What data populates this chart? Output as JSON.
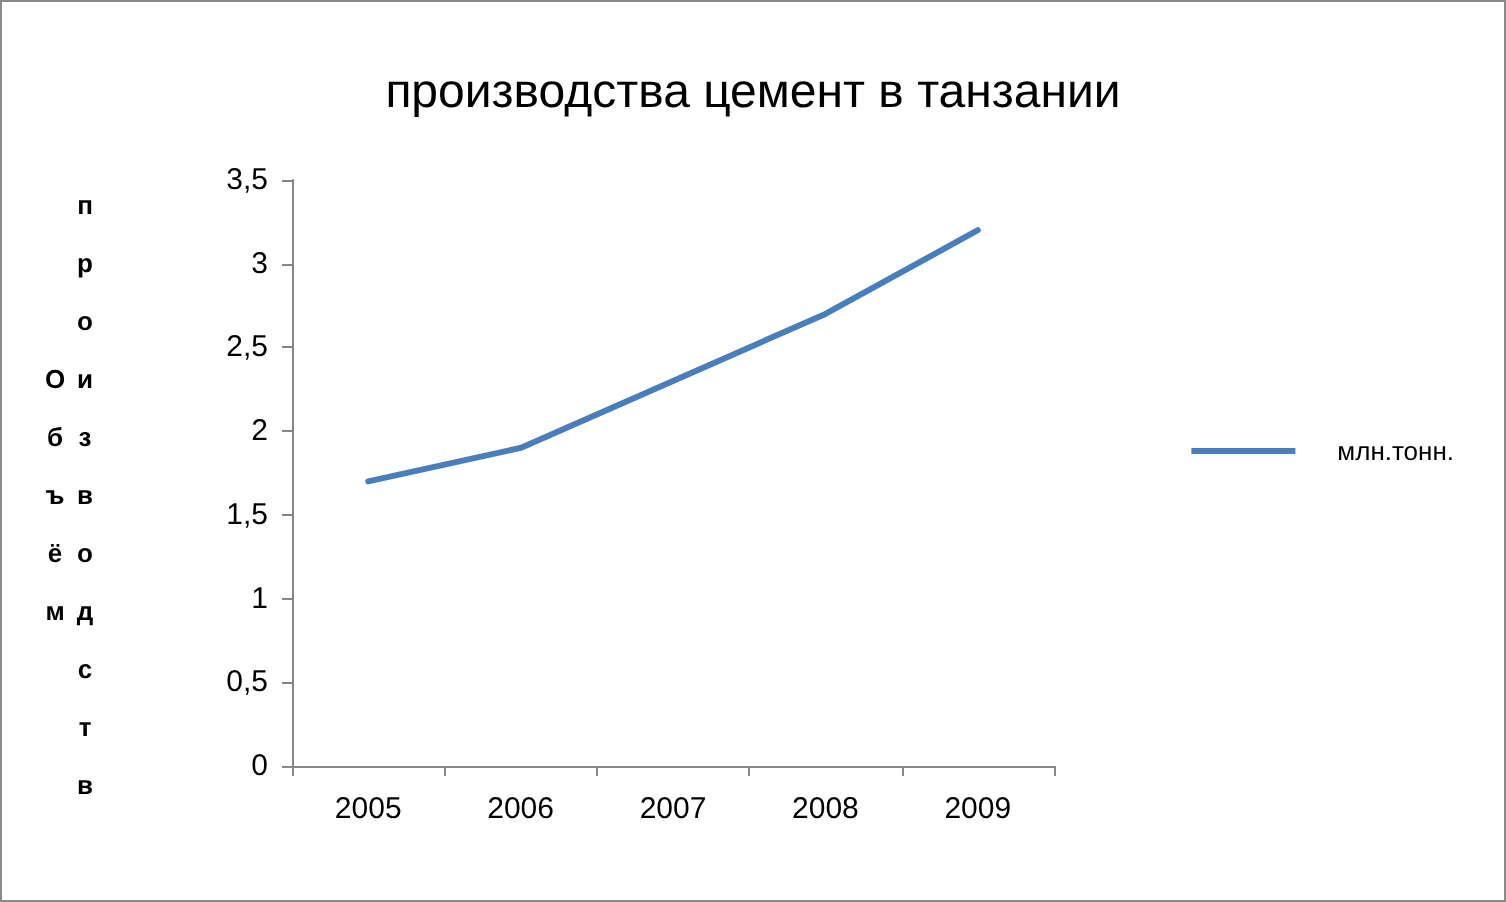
{
  "chart_data": {
    "type": "line",
    "title": "производства цемент в танзании",
    "ylabel": "Объём производств",
    "categories": [
      "2005",
      "2006",
      "2007",
      "2008",
      "2009"
    ],
    "series": [
      {
        "name": "млн.тонн.",
        "color": "#4a7ebb",
        "values": [
          1.7,
          1.9,
          2.3,
          2.7,
          3.2
        ]
      }
    ],
    "ylim": [
      0,
      3.5
    ],
    "yticks": [
      {
        "value": 0,
        "label": "0"
      },
      {
        "value": 0.5,
        "label": "0,5"
      },
      {
        "value": 1,
        "label": "1"
      },
      {
        "value": 1.5,
        "label": "1,5"
      },
      {
        "value": 2,
        "label": "2"
      },
      {
        "value": 2.5,
        "label": "2,5"
      },
      {
        "value": 3,
        "label": "3"
      },
      {
        "value": 3.5,
        "label": "3,5"
      }
    ],
    "grid": false,
    "legend": "right",
    "marker": "none",
    "line_style": "solid"
  }
}
